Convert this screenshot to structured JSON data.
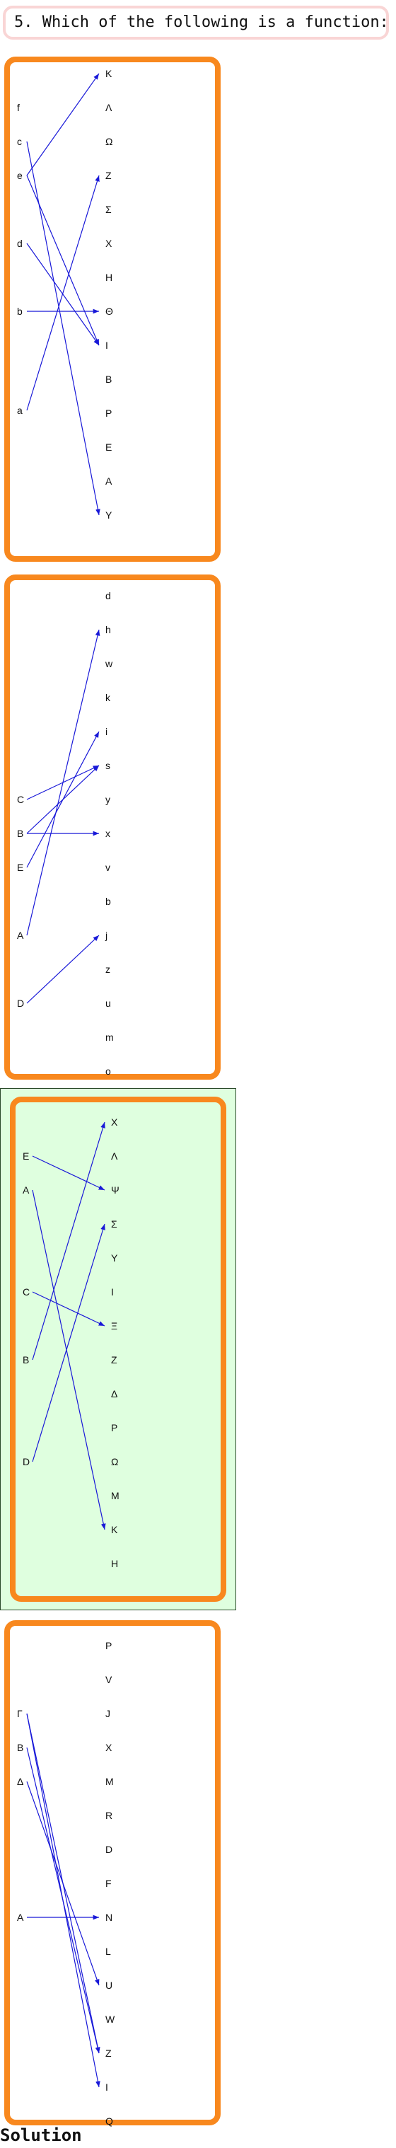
{
  "question": {
    "text": "5. Which of the following is a function:"
  },
  "solution_label": "Solution",
  "colors": {
    "panel_border": "#f8881e",
    "arrow": "#1818d8",
    "solution_bg": "#dfffdf",
    "question_border": "#f9d5d5"
  },
  "diagrams": [
    {
      "id": "A",
      "domain": [
        "f",
        "c",
        "e",
        "d",
        "b",
        "a"
      ],
      "codomain": [
        "K",
        "Λ",
        "Ω",
        "Z",
        "Σ",
        "X",
        "H",
        "Θ",
        "I",
        "B",
        "P",
        "E",
        "A",
        "Y"
      ],
      "mappings": [
        [
          "c",
          "Y"
        ],
        [
          "e",
          "K"
        ],
        [
          "e",
          "I"
        ],
        [
          "d",
          "I"
        ],
        [
          "b",
          "Θ"
        ],
        [
          "a",
          "Z"
        ]
      ]
    },
    {
      "id": "B",
      "domain": [
        "C",
        "B",
        "E",
        "A",
        "D"
      ],
      "codomain": [
        "d",
        "h",
        "w",
        "k",
        "i",
        "s",
        "y",
        "x",
        "v",
        "b",
        "j",
        "z",
        "u",
        "m",
        "o"
      ],
      "mappings": [
        [
          "C",
          "s"
        ],
        [
          "B",
          "s"
        ],
        [
          "B",
          "x"
        ],
        [
          "E",
          "i"
        ],
        [
          "A",
          "h"
        ],
        [
          "D",
          "j"
        ]
      ]
    },
    {
      "id": "C",
      "highlighted": true,
      "domain": [
        "E",
        "A",
        "C",
        "B",
        "D"
      ],
      "codomain": [
        "X",
        "Λ",
        "Ψ",
        "Σ",
        "Y",
        "I",
        "Ξ",
        "Z",
        "Δ",
        "P",
        "Ω",
        "M",
        "K",
        "H"
      ],
      "mappings": [
        [
          "E",
          "Ψ"
        ],
        [
          "A",
          "K"
        ],
        [
          "C",
          "Ξ"
        ],
        [
          "B",
          "X"
        ],
        [
          "D",
          "Σ"
        ]
      ]
    },
    {
      "id": "D",
      "domain": [
        "Γ",
        "B",
        "Δ",
        "A"
      ],
      "codomain": [
        "P",
        "V",
        "J",
        "X",
        "M",
        "R",
        "D",
        "F",
        "N",
        "L",
        "U",
        "W",
        "Z",
        "I",
        "Q"
      ],
      "mappings": [
        [
          "Γ",
          "Z"
        ],
        [
          "Γ",
          "I"
        ],
        [
          "B",
          "Z"
        ],
        [
          "Δ",
          "U"
        ],
        [
          "A",
          "N"
        ]
      ]
    }
  ]
}
